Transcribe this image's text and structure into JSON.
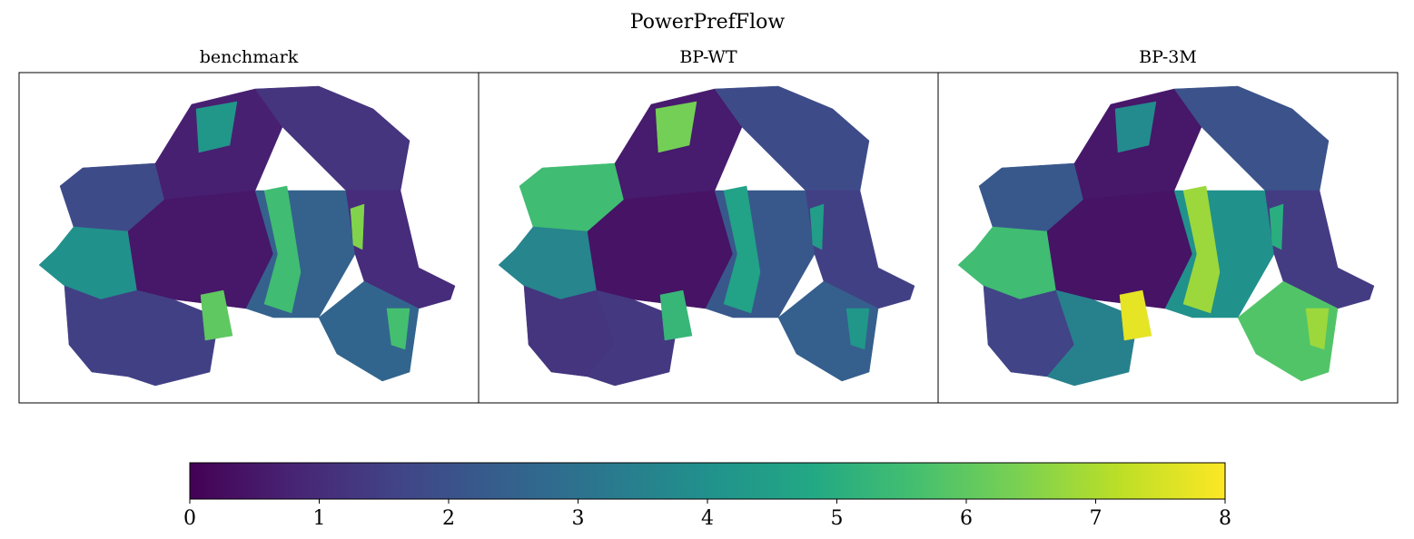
{
  "title": "PowerPrefFlow",
  "panels": [
    {
      "title": "benchmark",
      "values": [
        1.8,
        4.0,
        1.5,
        0.7,
        4.2,
        0.5,
        1.5,
        6.0,
        1.2,
        2.5,
        5.5,
        1.0,
        2.6,
        5.6,
        6.5
      ]
    },
    {
      "title": "BP-WT",
      "values": [
        5.5,
        3.6,
        1.2,
        0.6,
        6.3,
        0.4,
        1.3,
        5.3,
        1.8,
        2.2,
        4.6,
        1.5,
        2.4,
        4.2,
        4.4
      ]
    },
    {
      "title": "BP-3M",
      "values": [
        2.2,
        5.5,
        1.6,
        0.5,
        3.8,
        0.4,
        3.5,
        7.7,
        2.0,
        4.0,
        6.8,
        1.4,
        5.8,
        6.8,
        5.0
      ]
    }
  ],
  "colorbar": {
    "lim": [
      0,
      8
    ],
    "ticks": [
      0,
      1,
      2,
      3,
      4,
      5,
      6,
      7,
      8
    ],
    "colormap": "viridis"
  }
}
